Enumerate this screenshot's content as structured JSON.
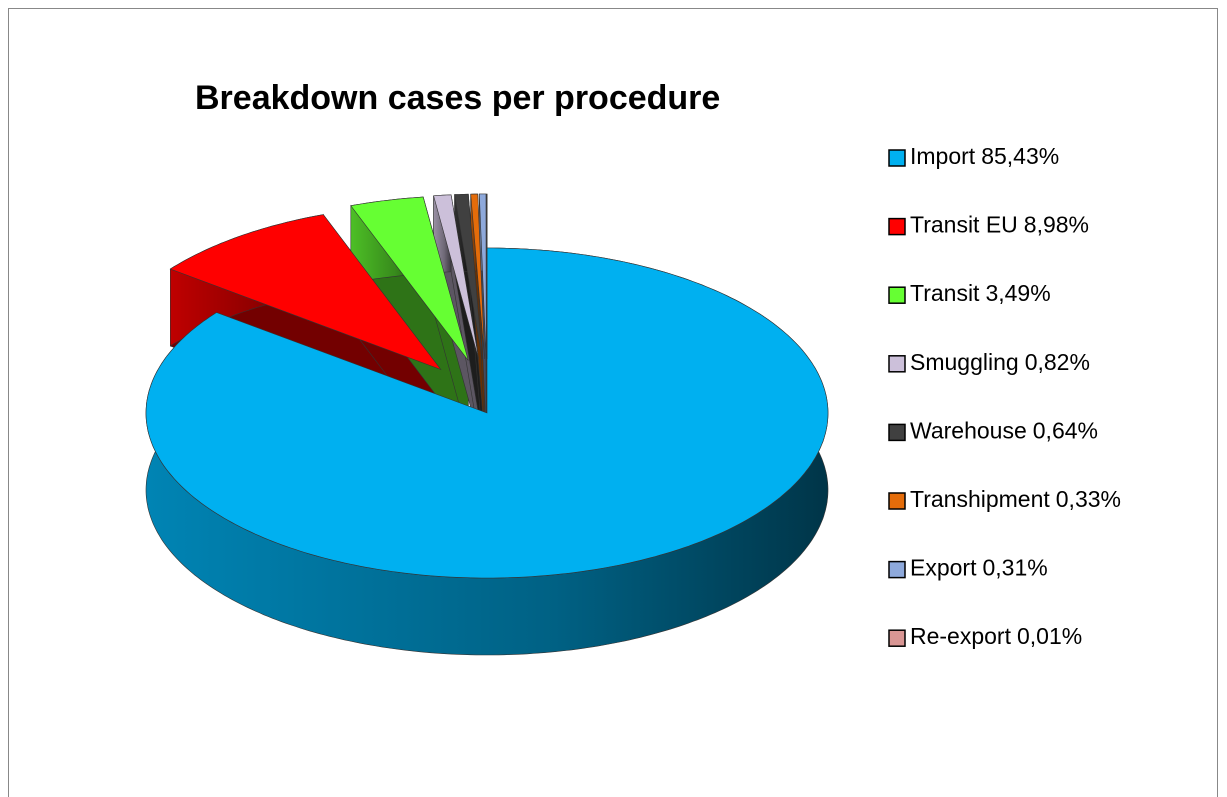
{
  "chart_data": {
    "type": "pie3d",
    "title": "Breakdown cases per procedure",
    "categories": [
      "Import",
      "Transit EU",
      "Transit",
      "Smuggling",
      "Warehouse",
      "Transhipment",
      "Export",
      "Re-export"
    ],
    "values": [
      85.43,
      8.98,
      3.49,
      0.82,
      0.64,
      0.33,
      0.31,
      0.01
    ],
    "value_labels": [
      "85,43%",
      "8,98%",
      "3,49%",
      "0,82%",
      "0,64%",
      "0,33%",
      "0,31%",
      "0,01%"
    ],
    "colors": [
      "#00b0f0",
      "#ff0000",
      "#66ff33",
      "#ccc0da",
      "#404040",
      "#e46c0a",
      "#8ea9db",
      "#d99694"
    ],
    "legend": "right"
  }
}
